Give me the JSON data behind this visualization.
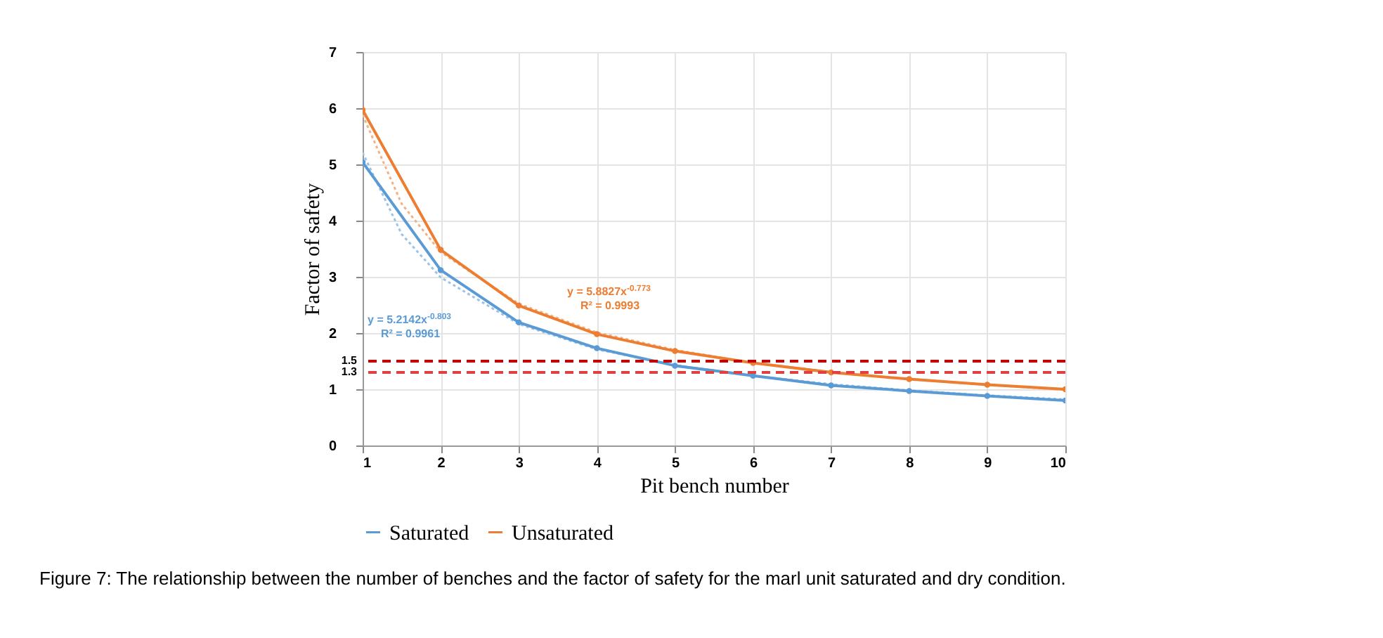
{
  "chart_data": {
    "type": "line",
    "xlabel": "Pit bench number",
    "ylabel": "Factor of safety",
    "x": [
      1,
      2,
      3,
      4,
      5,
      6,
      7,
      8,
      9,
      10
    ],
    "xlim": [
      1,
      10
    ],
    "xticks": [
      1,
      2,
      3,
      4,
      5,
      6,
      7,
      8,
      9,
      10
    ],
    "ylim": [
      0,
      7
    ],
    "yticks": [
      0,
      1,
      2,
      3,
      4,
      5,
      6,
      7
    ],
    "grid": true,
    "legend": "bottom",
    "marker": "circle",
    "line_style": "solid",
    "series": [
      {
        "name": "Saturated",
        "color": "#5b9bd5",
        "values": [
          5.04,
          3.12,
          2.19,
          1.73,
          1.42,
          1.24,
          1.07,
          0.97,
          0.88,
          0.8
        ]
      },
      {
        "name": "Unsaturated",
        "color": "#ed7d31",
        "values": [
          5.97,
          3.48,
          2.49,
          1.98,
          1.68,
          1.47,
          1.3,
          1.18,
          1.08,
          1.0
        ]
      },
      {
        "type": "line",
        "line_style": "dotted",
        "marker": "none",
        "color": "#9dc3e6",
        "x": [
          1,
          1.5,
          2,
          3,
          4,
          5,
          6,
          7,
          8,
          9,
          10
        ],
        "values": [
          5.21,
          3.76,
          2.99,
          2.16,
          1.71,
          1.43,
          1.24,
          1.09,
          0.98,
          0.89,
          0.82
        ]
      },
      {
        "type": "line",
        "line_style": "dotted",
        "marker": "none",
        "color": "#f4b183",
        "x": [
          1,
          1.5,
          2,
          3,
          4,
          5,
          6,
          7,
          8,
          9,
          10
        ],
        "values": [
          5.88,
          4.3,
          3.44,
          2.52,
          2.01,
          1.7,
          1.47,
          1.31,
          1.18,
          1.08,
          0.99
        ]
      }
    ],
    "ref_lines": [
      {
        "axis": "y",
        "value": 1.5,
        "label": "1.5",
        "color": "#c00000",
        "line_style": "dashed"
      },
      {
        "axis": "y",
        "value": 1.3,
        "label": "1.3",
        "color": "#e04040",
        "line_style": "dashed"
      }
    ],
    "annotations": [
      "y = 5.2142x$^{-0.803}$\nR² = 0.9961",
      "y = 5.8827x$^{-0.773}$\nR² = 0.9993",
      "Figure 7: The relationship between the number of benches and the factor of safety for the marl unit saturated and dry condition."
    ]
  }
}
